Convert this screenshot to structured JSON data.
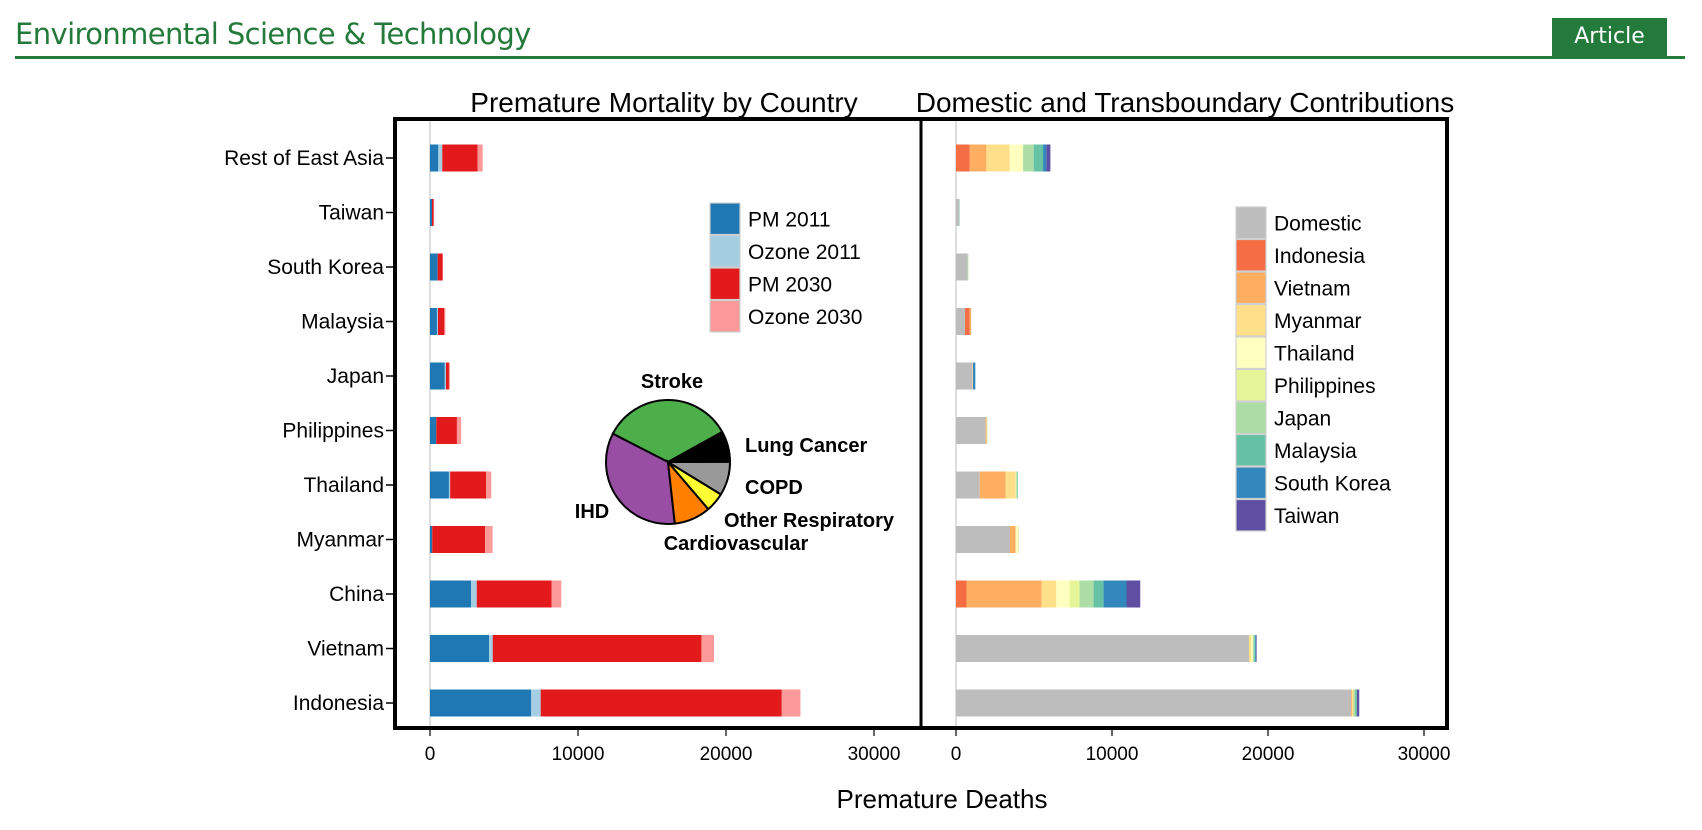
{
  "header": {
    "journal": "Environmental Science & Technology",
    "badge": "Article",
    "brand_color": "#237a3a"
  },
  "chart_data": [
    {
      "type": "bar",
      "orientation": "horizontal-stacked",
      "title": "Premature Mortality by Country",
      "xlabel": "Premature Deaths",
      "ylabel": "",
      "xlim": [
        0,
        30000
      ],
      "xticks": [
        0,
        10000,
        20000,
        30000
      ],
      "categories": [
        "Rest of East Asia",
        "Taiwan",
        "South Korea",
        "Malaysia",
        "Japan",
        "Philippines",
        "Thailand",
        "Myanmar",
        "China",
        "Vietnam",
        "Indonesia"
      ],
      "legend_position": "top-right",
      "series": [
        {
          "name": "PM 2011",
          "color": "#1f78b4",
          "values": [
            560,
            135,
            520,
            470,
            1000,
            425,
            1280,
            150,
            2770,
            3990,
            6840
          ]
        },
        {
          "name": "Ozone 2011",
          "color": "#a6cee3",
          "values": [
            270,
            0,
            0,
            70,
            80,
            0,
            80,
            0,
            390,
            250,
            640
          ]
        },
        {
          "name": "PM 2030",
          "color": "#e31a1c",
          "values": [
            2390,
            115,
            340,
            430,
            200,
            1395,
            2440,
            3570,
            5050,
            14100,
            16290
          ]
        },
        {
          "name": "Ozone 2030",
          "color": "#fb9a99",
          "values": [
            340,
            0,
            0,
            70,
            70,
            280,
            340,
            510,
            660,
            850,
            1260
          ]
        }
      ],
      "inset_pie": {
        "type": "pie",
        "slices": [
          {
            "label": "Stroke",
            "value": 34.4,
            "color": "#4daf4a"
          },
          {
            "label": "IHD",
            "value": 34.3,
            "color": "#984ea3"
          },
          {
            "label": "Cardiovascular",
            "value": 9.5,
            "color": "#ff7f00"
          },
          {
            "label": "Other Respiratory",
            "value": 5.0,
            "color": "#ffff33"
          },
          {
            "label": "COPD",
            "value": 8.8,
            "color": "#999999"
          },
          {
            "label": "Lung Cancer",
            "value": 8.0,
            "color": "#000000"
          }
        ]
      }
    },
    {
      "type": "bar",
      "orientation": "horizontal-stacked",
      "title": "Domestic and Transboundary Contributions",
      "xlabel": "Premature Deaths",
      "xlim": [
        0,
        30000
      ],
      "xticks": [
        0,
        10000,
        20000,
        30000
      ],
      "categories": [
        "Rest of East Asia",
        "Taiwan",
        "South Korea",
        "Malaysia",
        "Japan",
        "Philippines",
        "Thailand",
        "Myanmar",
        "China",
        "Vietnam",
        "Indonesia"
      ],
      "legend_position": "right",
      "series": [
        {
          "name": "Domestic",
          "color": "#bdbdbd",
          "values": [
            0,
            190,
            750,
            580,
            1050,
            1900,
            1520,
            3460,
            0,
            18780,
            25330
          ]
        },
        {
          "name": "Indonesia",
          "color": "#f46d43",
          "values": [
            880,
            0,
            0,
            300,
            0,
            0,
            0,
            0,
            680,
            0,
            0
          ]
        },
        {
          "name": "Vietnam",
          "color": "#fdae61",
          "values": [
            1070,
            0,
            0,
            90,
            20,
            70,
            1670,
            360,
            4810,
            0,
            60
          ]
        },
        {
          "name": "Myanmar",
          "color": "#fee08b",
          "values": [
            1500,
            0,
            0,
            0,
            20,
            0,
            640,
            0,
            940,
            150,
            90
          ]
        },
        {
          "name": "Thailand",
          "color": "#ffffbf",
          "values": [
            850,
            0,
            0,
            0,
            0,
            30,
            0,
            170,
            850,
            100,
            0
          ]
        },
        {
          "name": "Philippines",
          "color": "#e6f598",
          "values": [
            0,
            0,
            0,
            0,
            0,
            0,
            40,
            20,
            640,
            0,
            0
          ]
        },
        {
          "name": "Japan",
          "color": "#abdda4",
          "values": [
            680,
            30,
            40,
            0,
            0,
            20,
            50,
            20,
            900,
            90,
            110
          ]
        },
        {
          "name": "Malaysia",
          "color": "#66c2a5",
          "values": [
            600,
            0,
            0,
            0,
            0,
            0,
            40,
            0,
            640,
            60,
            110
          ]
        },
        {
          "name": "South Korea",
          "color": "#3288bd",
          "values": [
            210,
            10,
            0,
            0,
            150,
            0,
            0,
            0,
            1470,
            50,
            0
          ]
        },
        {
          "name": "Taiwan",
          "color": "#5e4fa2",
          "values": [
            260,
            0,
            0,
            0,
            0,
            0,
            0,
            0,
            880,
            40,
            150
          ]
        }
      ]
    }
  ]
}
